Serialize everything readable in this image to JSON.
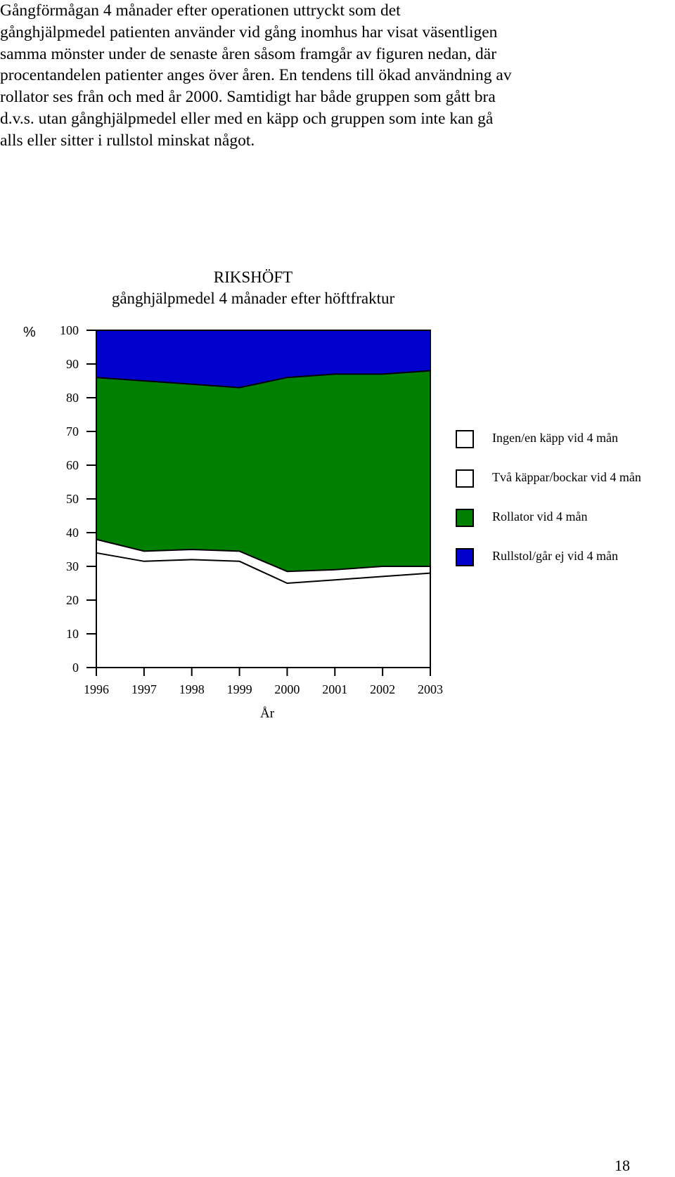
{
  "document": {
    "paragraph_lines": [
      "Gångförmågan 4 månader efter operationen uttryckt som  det",
      "gånghjälpmedel patienten använder vid gång inomhus har visat väsentligen",
      "samma mönster under  de senaste åren såsom framgår av figuren nedan, där",
      "procentandelen patienter anges över åren. En tendens till ökad användning av",
      "rollator ses från och med år 2000. Samtidigt har både gruppen som gått bra",
      "d.v.s. utan gånghjälpmedel eller med en käpp och gruppen som inte kan gå",
      "alls eller sitter i rullstol minskat något."
    ],
    "page_number": "18"
  },
  "chart_data": {
    "type": "area",
    "stacked": true,
    "title": "RIKSHÖFT",
    "subtitle": "gånghjälpmedel 4 månader efter höftfraktur",
    "ylabel": "%",
    "xlabel": "År",
    "ylim": [
      0,
      100
    ],
    "yticks": [
      "0",
      "10",
      "20",
      "30",
      "40",
      "50",
      "60",
      "70",
      "80",
      "90",
      "100"
    ],
    "x": [
      "1996",
      "1997",
      "1998",
      "1999",
      "2000",
      "2001",
      "2002",
      "2003"
    ],
    "grid": false,
    "legend_position": "right",
    "series": [
      {
        "name": "Ingen/en  käpp vid 4 mån",
        "color": "#ffffff",
        "values": [
          34,
          31.5,
          32,
          31.5,
          25,
          26,
          27,
          28
        ]
      },
      {
        "name": "Två käppar/bockar vid 4 mån",
        "color": "#ffffff",
        "values": [
          4,
          3,
          3,
          3,
          3.5,
          3,
          3,
          2
        ]
      },
      {
        "name": "Rollator vid 4 mån",
        "color": "#008000",
        "values": [
          48,
          50.5,
          49,
          48.5,
          57.5,
          58,
          57,
          58
        ]
      },
      {
        "name": "Rullstol/går ej vid 4 mån",
        "color": "#0000cc",
        "values": [
          14,
          15,
          16,
          17,
          14,
          13,
          13,
          12
        ]
      }
    ]
  }
}
